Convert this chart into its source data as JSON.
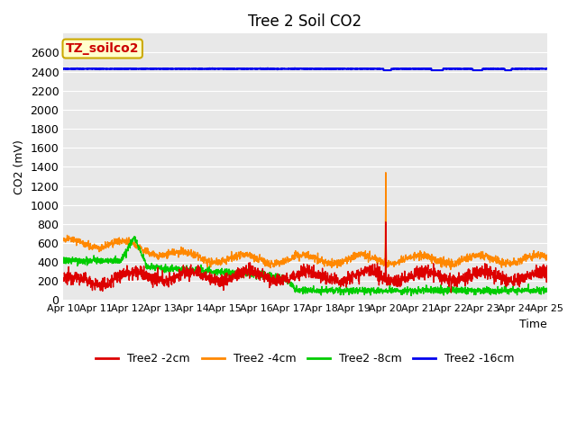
{
  "title": "Tree 2 Soil CO2",
  "ylabel": "CO2 (mV)",
  "xlabel": "Time",
  "annotation_text": "TZ_soilco2",
  "annotation_bg": "#ffffcc",
  "annotation_border": "#ccaa00",
  "annotation_text_color": "#cc0000",
  "ylim": [
    0,
    2800
  ],
  "yticks": [
    0,
    200,
    400,
    600,
    800,
    1000,
    1200,
    1400,
    1600,
    1800,
    2000,
    2200,
    2400,
    2600
  ],
  "series": {
    "tree2_2cm": {
      "color": "#dd0000",
      "label": "Tree2 -2cm"
    },
    "tree2_4cm": {
      "color": "#ff8800",
      "label": "Tree2 -4cm"
    },
    "tree2_8cm": {
      "color": "#00cc00",
      "label": "Tree2 -8cm"
    },
    "tree2_16cm": {
      "color": "#0000ee",
      "label": "Tree2 -16cm"
    }
  },
  "plot_bg_color": "#e8e8e8",
  "fig_bg_color": "#ffffff",
  "grid_color": "#ffffff",
  "xtick_labels": [
    "Apr 10",
    "Apr 11",
    "Apr 12",
    "Apr 13",
    "Apr 14",
    "Apr 15",
    "Apr 16",
    "Apr 17",
    "Apr 18",
    "Apr 19",
    "Apr 20",
    "Apr 21",
    "Apr 22",
    "Apr 23",
    "Apr 24",
    "Apr 25"
  ],
  "xtick_positions": [
    0,
    1,
    2,
    3,
    4,
    5,
    6,
    7,
    8,
    9,
    10,
    11,
    12,
    13,
    14,
    15
  ]
}
